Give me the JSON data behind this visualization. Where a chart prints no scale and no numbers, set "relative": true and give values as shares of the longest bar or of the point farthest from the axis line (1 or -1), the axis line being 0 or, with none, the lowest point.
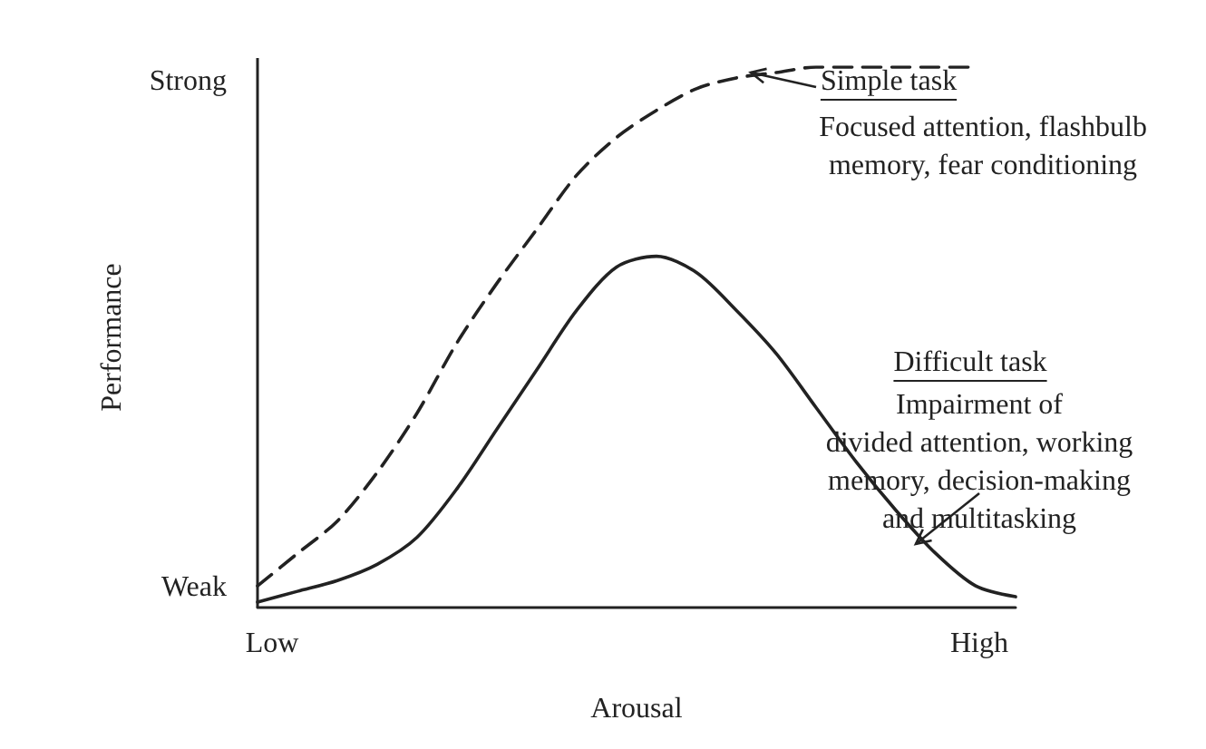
{
  "chart_data": {
    "type": "line",
    "xlabel": "Arousal",
    "ylabel": "Performance",
    "relative": true,
    "grid": false,
    "marker": "none",
    "categories": [
      null,
      null,
      null,
      null,
      null,
      null,
      null,
      null,
      null,
      null,
      null,
      null,
      null,
      null,
      null,
      null,
      null,
      null,
      null,
      null
    ],
    "series": [
      {
        "color": "#222222",
        "line_style": "dashed",
        "values": [
          0.04,
          0.1,
          0.16,
          0.25,
          0.36,
          0.49,
          0.6,
          0.7,
          0.8,
          0.87,
          0.92,
          0.96,
          0.98,
          0.99,
          1,
          1,
          1,
          1,
          1,
          null
        ]
      },
      {
        "color": "#222222",
        "line_style": "solid",
        "values": [
          0.01,
          0.03,
          0.05,
          0.08,
          0.13,
          0.22,
          0.33,
          0.44,
          0.55,
          0.63,
          0.65,
          0.62,
          0.55,
          0.47,
          0.37,
          0.27,
          0.18,
          0.1,
          0.04,
          0.02
        ]
      }
    ],
    "annotations": [
      "Strong",
      "Weak",
      "Low",
      "High",
      "Simple task",
      "Focused attention, flashbulb\nmemory, fear conditioning",
      "Difficult task",
      "Impairment of\ndivided attention, working\nmemory, decision-making\nand multitasking"
    ]
  }
}
